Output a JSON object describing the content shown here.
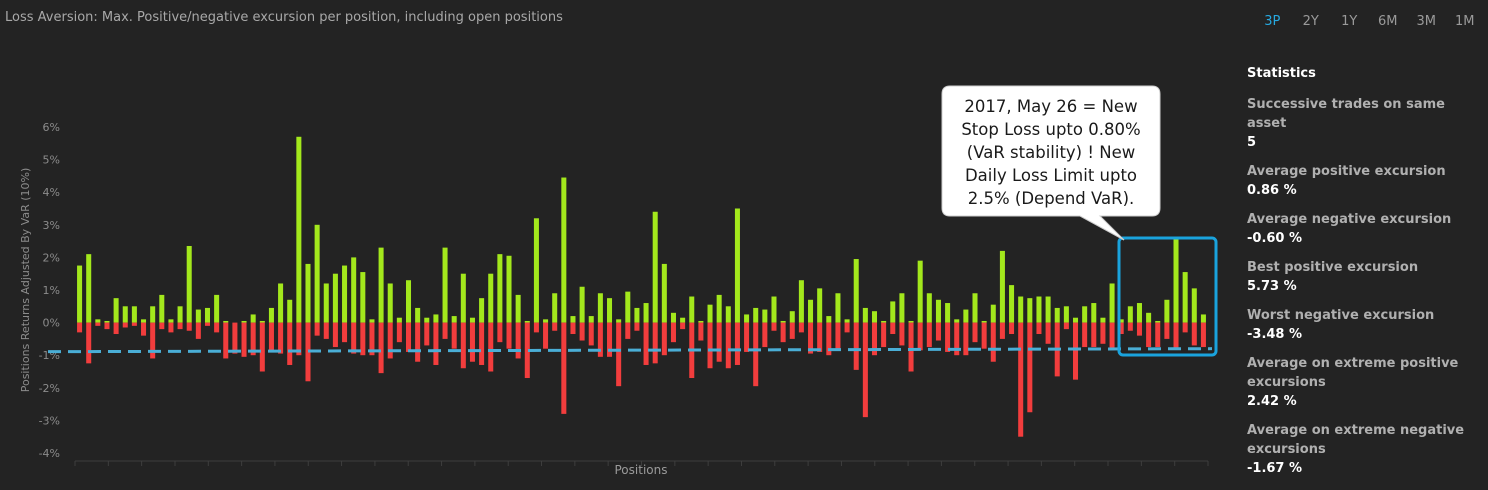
{
  "header": {
    "title": "Loss Aversion: Max. Positive/negative excursion per position, including open positions",
    "ranges": [
      "3P",
      "2Y",
      "1Y",
      "6M",
      "3M",
      "1M"
    ],
    "active_range": "3P"
  },
  "annotation": {
    "lines": [
      "2017, May 26 = New",
      "Stop Loss upto 0.80%",
      "(VaR stability) ! New",
      "Daily Loss Limit upto",
      "2.5% (Depend VaR)."
    ],
    "highlight_color": "#1aa3dd"
  },
  "statistics": {
    "heading": "Statistics",
    "items": [
      {
        "label": "Successive trades on same asset",
        "value": "5"
      },
      {
        "label": "Average positive excursion",
        "value": "0.86 %"
      },
      {
        "label": "Average negative excursion",
        "value": "-0.60 %"
      },
      {
        "label": "Best positive excursion",
        "value": "5.73 %"
      },
      {
        "label": "Worst negative excursion",
        "value": "-3.48 %"
      },
      {
        "label": "Average on extreme positive excursions",
        "value": "2.42 %"
      },
      {
        "label": "Average on extreme negative excursions",
        "value": "-1.67 %"
      }
    ]
  },
  "chart_data": {
    "type": "bar",
    "xlabel": "Positions",
    "ylabel": "Positions Returns Adjusted By VaR (10%)",
    "ylim": [
      -4,
      6
    ],
    "yticks": [
      "6%",
      "5%",
      "4%",
      "3%",
      "2%",
      "1%",
      "0%",
      "-1%",
      "-2%",
      "-3%",
      "-4%"
    ],
    "colors": {
      "positive": "#a3e81c",
      "negative": "#f23d3d",
      "threshold": "#4aaed6"
    },
    "threshold": -0.8,
    "series": [
      {
        "values": [
          1.75,
          2.1,
          0.1,
          0.05,
          0.75,
          0.5,
          0.5,
          0.1,
          0.5,
          0.85,
          0.1,
          0.5,
          2.35,
          0.4,
          0.45,
          0.85,
          0.05,
          0.0,
          0.05,
          0.25,
          0.05,
          0.45,
          1.2,
          0.7,
          5.7,
          1.8,
          3.0,
          1.2,
          1.5,
          1.75,
          2.0,
          1.55,
          0.1,
          2.3,
          1.2,
          0.15,
          1.3,
          0.45,
          0.15,
          0.25,
          2.3,
          0.2,
          1.5,
          0.15,
          0.75,
          1.5,
          2.1,
          2.05,
          0.85,
          0.05,
          3.2,
          0.1,
          0.9,
          4.45,
          0.2,
          1.1,
          0.2,
          0.9,
          0.75,
          0.1,
          0.95,
          0.45,
          0.6,
          3.4,
          1.8,
          0.3,
          0.15,
          0.8,
          0.05,
          0.55,
          0.85,
          0.5,
          3.5,
          0.25,
          0.45,
          0.4,
          0.8,
          0.05,
          0.35,
          1.3,
          0.7,
          1.05,
          0.2,
          0.9,
          0.1,
          1.95,
          0.45,
          0.35,
          0.05,
          0.65,
          0.9,
          0.05,
          1.9,
          0.9,
          0.7,
          0.6,
          0.1,
          0.4,
          0.9,
          0.05,
          0.55,
          2.2,
          1.15,
          0.8,
          0.75,
          0.8,
          0.8,
          0.45,
          0.5,
          0.15,
          0.5,
          0.6,
          0.15,
          1.2,
          0.1,
          0.5,
          0.6,
          0.3,
          0.05,
          0.7,
          2.55,
          1.55,
          1.05,
          0.25
        ]
      },
      {
        "values": [
          -0.3,
          -1.25,
          -0.1,
          -0.2,
          -0.35,
          -0.15,
          -0.1,
          -0.4,
          -1.1,
          -0.2,
          -0.3,
          -0.2,
          -0.25,
          -0.5,
          -0.1,
          -0.3,
          -1.1,
          -0.95,
          -1.05,
          -1.0,
          -1.5,
          -0.85,
          -0.95,
          -1.3,
          -1.0,
          -1.8,
          -0.4,
          -0.5,
          -0.75,
          -0.6,
          -0.95,
          -1.0,
          -1.0,
          -1.55,
          -1.1,
          -0.6,
          -0.9,
          -1.2,
          -0.7,
          -1.3,
          -0.5,
          -0.8,
          -1.4,
          -1.2,
          -1.3,
          -1.5,
          -0.6,
          -0.8,
          -1.1,
          -1.7,
          -0.3,
          -0.8,
          -0.25,
          -2.8,
          -0.35,
          -0.55,
          -0.7,
          -1.05,
          -1.05,
          -1.95,
          -0.5,
          -0.25,
          -1.3,
          -1.25,
          -1.0,
          -0.6,
          -0.2,
          -1.7,
          -0.55,
          -1.4,
          -1.2,
          -1.4,
          -1.3,
          -0.9,
          -1.95,
          -0.75,
          -0.25,
          -0.6,
          -0.5,
          -0.3,
          -0.95,
          -0.9,
          -1.0,
          -0.85,
          -0.3,
          -1.45,
          -2.9,
          -1.0,
          -0.75,
          -0.35,
          -0.7,
          -1.5,
          -0.85,
          -0.75,
          -0.55,
          -0.9,
          -1.0,
          -1.0,
          -0.6,
          -0.8,
          -1.2,
          -0.5,
          -0.35,
          -3.5,
          -2.75,
          -0.35,
          -0.65,
          -1.65,
          -0.2,
          -1.75,
          -0.75,
          -0.75,
          -0.65,
          -0.85,
          -0.35,
          -0.25,
          -0.4,
          -0.75,
          -0.75,
          -0.5,
          -0.8,
          -0.3,
          -0.7,
          -0.75
        ]
      }
    ],
    "grid": false,
    "legend": "none"
  }
}
